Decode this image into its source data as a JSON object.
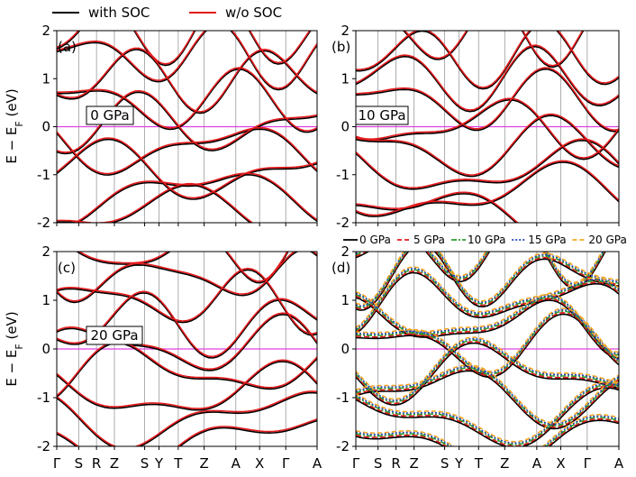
{
  "legend_top": [
    {
      "label": "with SOC",
      "color": "#000000"
    },
    {
      "label": "w/o SOC",
      "color": "#e41a1c"
    }
  ],
  "legend_d": [
    {
      "label": "0 GPa",
      "color": "#000000",
      "dash": "solid"
    },
    {
      "label": "5 GPa",
      "color": "#e41a1c",
      "dash": "dashed"
    },
    {
      "label": "10 GPa",
      "color": "#2ca02c",
      "dash": "dashdot"
    },
    {
      "label": "15 GPa",
      "color": "#1f3fbf",
      "dash": "dotted"
    },
    {
      "label": "20 GPa",
      "color": "#f5a623",
      "dash": "dashed"
    }
  ],
  "y_axis_label": "E − E",
  "y_axis_label_sub": "F",
  "y_axis_label_unit": "(eV)",
  "kpath": [
    "Γ",
    "S",
    "R",
    "Z",
    "S",
    "Y",
    "T",
    "Z",
    "A",
    "X",
    "Γ",
    "A"
  ],
  "fermi_color": "#e040e0",
  "chart_data": [
    {
      "type": "line",
      "panel": "(a)",
      "annotation": "0 GPa",
      "ylim": [
        -2,
        2
      ],
      "yticks": [
        -2,
        -1,
        0,
        1,
        2
      ],
      "x_ticks": [
        "Γ",
        "S",
        "R",
        "Z",
        "S",
        "Y",
        "T",
        "Z",
        "A",
        "X",
        "Γ",
        "A"
      ],
      "series": [
        {
          "name": "with SOC"
        },
        {
          "name": "w/o SOC"
        }
      ]
    },
    {
      "type": "line",
      "panel": "(b)",
      "annotation": "10 GPa",
      "ylim": [
        -2,
        2
      ],
      "yticks": [
        -2,
        -1,
        0,
        1,
        2
      ],
      "x_ticks": [
        "Γ",
        "S",
        "R",
        "Z",
        "S",
        "Y",
        "T",
        "Z",
        "A",
        "X",
        "Γ",
        "A"
      ],
      "series": [
        {
          "name": "with SOC"
        },
        {
          "name": "w/o SOC"
        }
      ]
    },
    {
      "type": "line",
      "panel": "(c)",
      "annotation": "20 GPa",
      "ylim": [
        -2,
        2
      ],
      "yticks": [
        -2,
        -1,
        0,
        1,
        2
      ],
      "x_ticks": [
        "Γ",
        "S",
        "R",
        "Z",
        "S",
        "Y",
        "T",
        "Z",
        "A",
        "X",
        "Γ",
        "A"
      ],
      "series": [
        {
          "name": "with SOC"
        },
        {
          "name": "w/o SOC"
        }
      ]
    },
    {
      "type": "line",
      "panel": "(d)",
      "annotation": "",
      "ylim": [
        -2,
        2
      ],
      "yticks": [
        -2,
        -1,
        0,
        1,
        2
      ],
      "x_ticks": [
        "Γ",
        "S",
        "R",
        "Z",
        "S",
        "Y",
        "T",
        "Z",
        "A",
        "X",
        "Γ",
        "A"
      ],
      "series": [
        {
          "name": "0 GPa"
        },
        {
          "name": "5 GPa"
        },
        {
          "name": "10 GPa"
        },
        {
          "name": "15 GPa"
        },
        {
          "name": "20 GPa"
        }
      ]
    }
  ]
}
